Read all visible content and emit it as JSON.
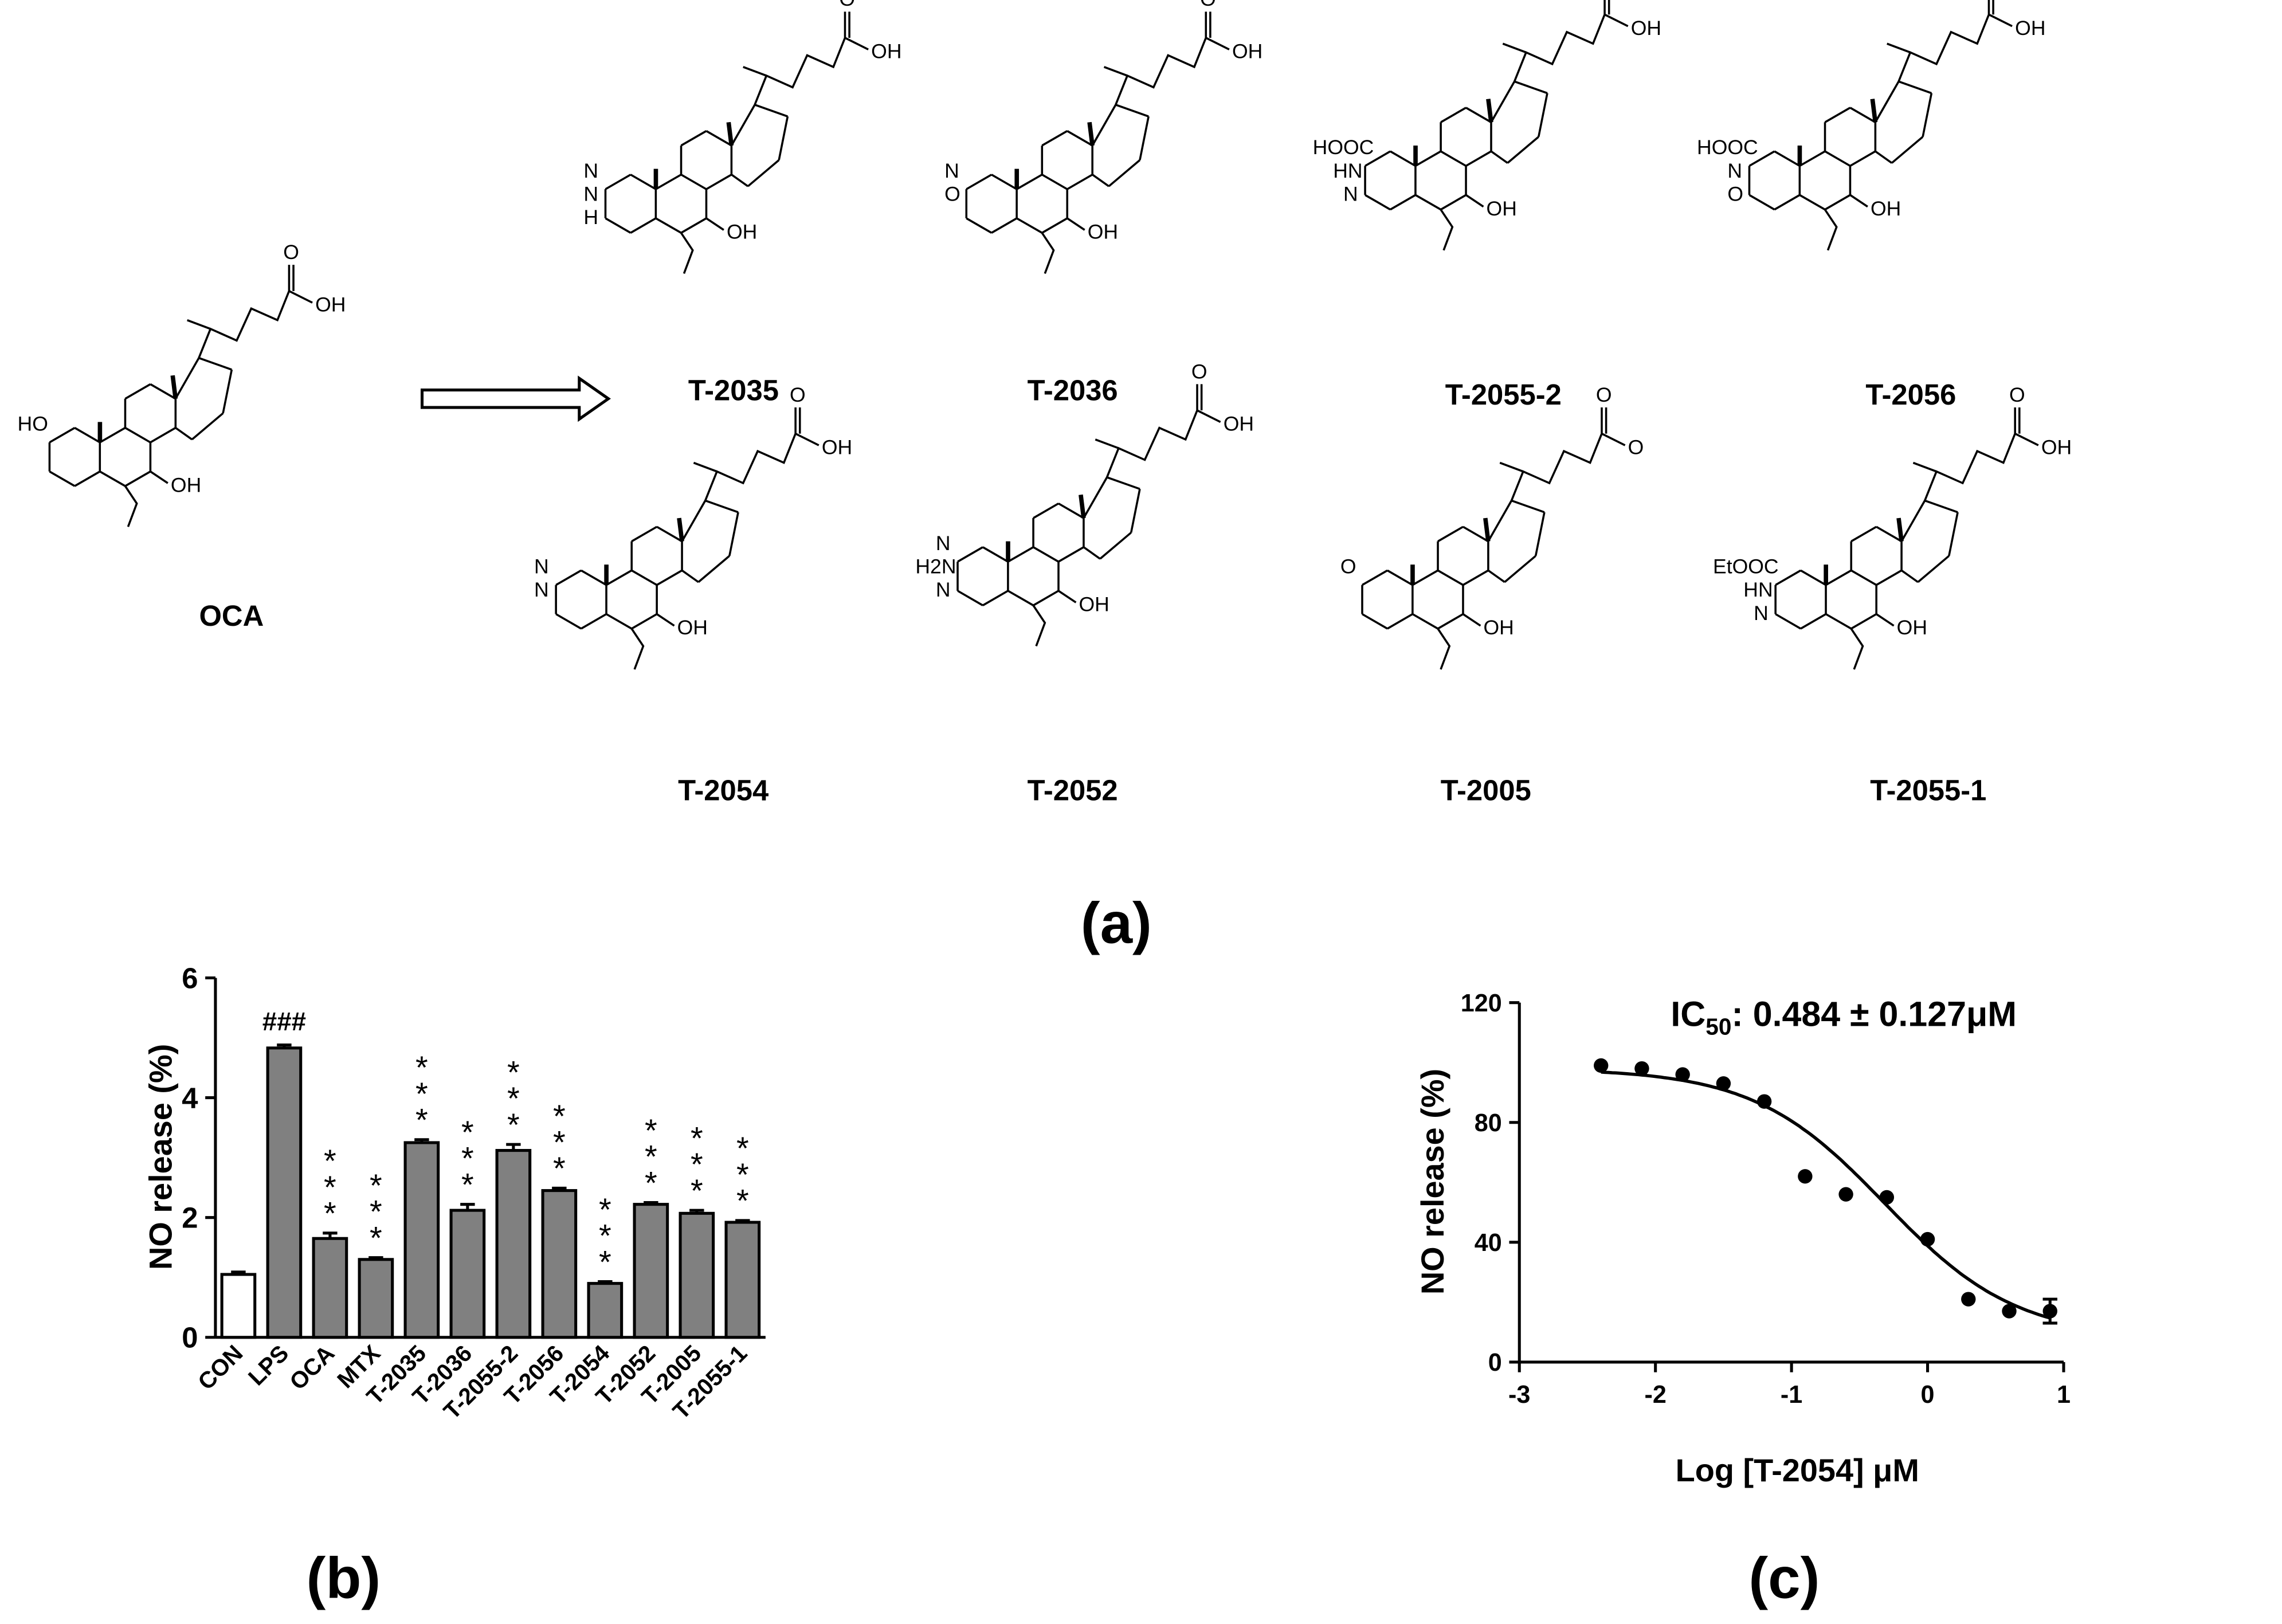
{
  "panels": {
    "a": "(a)",
    "b": "(b)",
    "c": "(c)"
  },
  "structures": [
    {
      "id": "OCA",
      "label": "OCA",
      "ring_a": "diol",
      "texts": [
        "HO",
        "OH",
        "O",
        "OH"
      ]
    },
    {
      "id": "T-2035",
      "label": "T-2035",
      "ring_a": "pyrazole",
      "texts": [
        "N",
        "N",
        "H",
        "OH",
        "O",
        "OH"
      ]
    },
    {
      "id": "T-2036",
      "label": "T-2036",
      "ring_a": "isoxazole",
      "texts": [
        "N",
        "O",
        "OH",
        "O",
        "OH"
      ]
    },
    {
      "id": "T-2055-2",
      "label": "T-2055-2",
      "ring_a": "pyrazole-acid",
      "texts": [
        "HOOC",
        "HN",
        "N",
        "OH",
        "O",
        "OH"
      ]
    },
    {
      "id": "T-2056",
      "label": "T-2056",
      "ring_a": "isoxazole-acid",
      "texts": [
        "HOOC",
        "N",
        "O",
        "OH",
        "O",
        "OH"
      ]
    },
    {
      "id": "T-2054",
      "label": "T-2054",
      "ring_a": "methylpyrimidine",
      "texts": [
        "N",
        "N",
        "OH",
        "O",
        "OH"
      ]
    },
    {
      "id": "T-2052",
      "label": "T-2052",
      "ring_a": "aminopyrimidine",
      "texts": [
        "N",
        "H2N",
        "N",
        "OH",
        "O",
        "OH"
      ]
    },
    {
      "id": "T-2005",
      "label": "T-2005",
      "ring_a": "ketone",
      "texts": [
        "O",
        "OH",
        "O",
        "O"
      ]
    },
    {
      "id": "T-2055-1",
      "label": "T-2055-1",
      "ring_a": "pyrazole-ester",
      "texts": [
        "EtOOC",
        "HN",
        "N",
        "OH",
        "O",
        "OH"
      ]
    }
  ],
  "chart_data": [
    {
      "panel": "b",
      "type": "bar",
      "categories": [
        "CON",
        "LPS",
        "OCA",
        "MTX",
        "T-2035",
        "T-2036",
        "T-2055-2",
        "T-2056",
        "T-2054",
        "T-2052",
        "T-2005",
        "T-2055-1"
      ],
      "values": [
        1.05,
        4.83,
        1.65,
        1.3,
        3.25,
        2.12,
        3.12,
        2.45,
        0.9,
        2.22,
        2.07,
        1.92
      ],
      "errors": [
        0.04,
        0.05,
        0.09,
        0.03,
        0.05,
        0.1,
        0.1,
        0.04,
        0.03,
        0.03,
        0.05,
        0.03
      ],
      "annotations": [
        "",
        "###",
        "***",
        "***",
        "***",
        "***",
        "***",
        "***",
        "***",
        "***",
        "***",
        "***"
      ],
      "bar_colors": [
        "#ffffff",
        "#808080",
        "#808080",
        "#808080",
        "#808080",
        "#808080",
        "#808080",
        "#808080",
        "#808080",
        "#808080",
        "#808080",
        "#808080"
      ],
      "ylabel": "NO release (%)",
      "ylim": [
        0,
        6
      ],
      "yticks": [
        0,
        2,
        4,
        6
      ],
      "grid": false
    },
    {
      "panel": "c",
      "type": "scatter",
      "x": [
        -2.4,
        -2.1,
        -1.8,
        -1.5,
        -1.2,
        -0.9,
        -0.6,
        -0.3,
        0.0,
        0.3,
        0.6,
        0.9
      ],
      "y": [
        99,
        98,
        96,
        93,
        87,
        62,
        56,
        55,
        41,
        21,
        17,
        17
      ],
      "errors": [
        0,
        0,
        0,
        0,
        0,
        0,
        0,
        0,
        0,
        0,
        0,
        4
      ],
      "fit": {
        "curve": "sigmoidal dose-response",
        "top": 98,
        "bottom": 8,
        "log_ic50": -0.315,
        "hill": 0.9
      },
      "annotation": {
        "prefix": "IC",
        "subscript": "50",
        "text": ": 0.484 ± 0.127μM"
      },
      "xlabel": "Log [T-2054] μM",
      "ylabel": "NO release (%)",
      "xlim": [
        -3,
        1
      ],
      "ylim": [
        0,
        120
      ],
      "xticks": [
        -3,
        -2,
        -1,
        0,
        1
      ],
      "yticks": [
        0,
        40,
        80,
        120
      ],
      "grid": false
    }
  ]
}
